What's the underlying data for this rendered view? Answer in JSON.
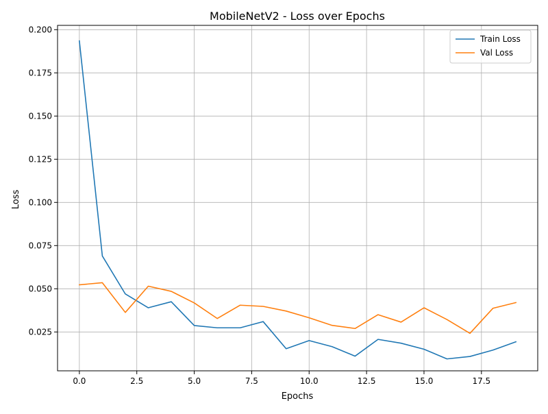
{
  "chart_data": {
    "type": "line",
    "title": "MobileNetV2 - Loss over Epochs",
    "xlabel": "Epochs",
    "ylabel": "Loss",
    "x": [
      0,
      1,
      2,
      3,
      4,
      5,
      6,
      7,
      8,
      9,
      10,
      11,
      12,
      13,
      14,
      15,
      16,
      17,
      18,
      19
    ],
    "xlim": [
      -0.95,
      19.95
    ],
    "ylim": [
      0.0025,
      0.2025
    ],
    "x_ticks": [
      0,
      2.5,
      5,
      7.5,
      10,
      12.5,
      15,
      17.5
    ],
    "x_tick_labels": [
      "0.0",
      "2.5",
      "5.0",
      "7.5",
      "10.0",
      "12.5",
      "15.0",
      "17.5"
    ],
    "y_ticks": [
      0.025,
      0.05,
      0.075,
      0.1,
      0.125,
      0.15,
      0.175,
      0.2
    ],
    "y_tick_labels": [
      "0.025",
      "0.050",
      "0.075",
      "0.100",
      "0.125",
      "0.150",
      "0.175",
      "0.200"
    ],
    "grid": true,
    "legend_position": "top-right",
    "series": [
      {
        "name": "Train Loss",
        "color": "#1f77b4",
        "values": [
          0.1935,
          0.069,
          0.047,
          0.039,
          0.0425,
          0.0287,
          0.0274,
          0.0274,
          0.031,
          0.0153,
          0.02,
          0.0165,
          0.011,
          0.0207,
          0.0185,
          0.015,
          0.0094,
          0.0108,
          0.0145,
          0.0193
        ]
      },
      {
        "name": "Val Loss",
        "color": "#ff7f0e",
        "values": [
          0.0523,
          0.0535,
          0.0363,
          0.0515,
          0.0485,
          0.0418,
          0.0328,
          0.0405,
          0.0398,
          0.0371,
          0.0332,
          0.0288,
          0.027,
          0.035,
          0.0307,
          0.039,
          0.0322,
          0.0242,
          0.0387,
          0.042
        ]
      }
    ]
  }
}
